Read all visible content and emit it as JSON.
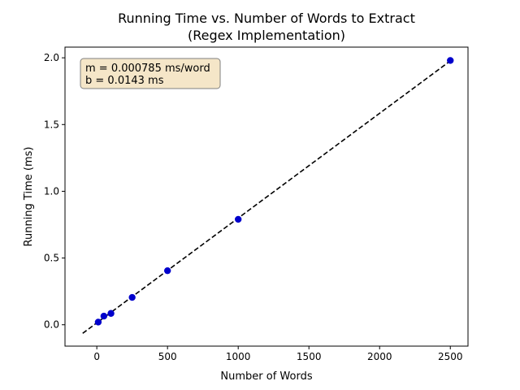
{
  "chart_data": {
    "type": "scatter",
    "title": "Running Time vs. Number of Words to Extract",
    "subtitle": "(Regex Implementation)",
    "xlabel": "Number of Words",
    "ylabel": "Running Time (ms)",
    "xlim": [
      -225,
      2625
    ],
    "ylim": [
      -0.16,
      2.08
    ],
    "xticks": [
      0,
      500,
      1000,
      1500,
      2000,
      2500
    ],
    "xtick_labels": [
      "0",
      "500",
      "1000",
      "1500",
      "2000",
      "2500"
    ],
    "yticks": [
      0.0,
      0.5,
      1.0,
      1.5,
      2.0
    ],
    "ytick_labels": [
      "0.0",
      "0.5",
      "1.0",
      "1.5",
      "2.0"
    ],
    "grid": false,
    "series": [
      {
        "kind": "points",
        "color": "#0000cc",
        "x": [
          10,
          50,
          100,
          250,
          500,
          1000,
          2500
        ],
        "y": [
          0.02,
          0.065,
          0.085,
          0.205,
          0.405,
          0.79,
          1.98
        ]
      },
      {
        "kind": "fit-line",
        "color": "#000000",
        "style": "dashed",
        "x": [
          -100,
          2500
        ],
        "y": [
          -0.0642,
          1.9768
        ]
      }
    ],
    "annotation": {
      "lines": [
        "m = 0.000785 ms/word",
        "b = 0.0143 ms"
      ],
      "placement": "top-left",
      "background": "#f5e6c8",
      "border": "#808080"
    }
  }
}
